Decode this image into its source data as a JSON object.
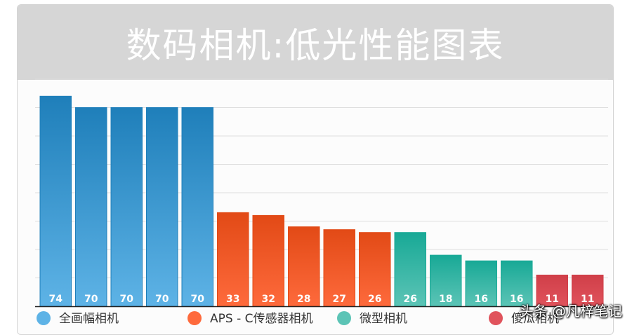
{
  "chart_data": {
    "type": "bar",
    "title": "数码相机:低光性能图表",
    "ylim": [
      0,
      80
    ],
    "grid": true,
    "legend_position": "bottom",
    "groups": [
      {
        "name": "全画幅相机",
        "color": "#5eb3e6",
        "color_dark": "#1f7fba"
      },
      {
        "name": "APS - C传感器相机",
        "color": "#fe6a3c",
        "color_dark": "#e24a16"
      },
      {
        "name": "微型相机",
        "color": "#5cc4b6",
        "color_dark": "#18a996"
      },
      {
        "name": "傻瓜相机",
        "color": "#e0535c",
        "color_dark": "#d03f49"
      }
    ],
    "bars": [
      {
        "value": 74,
        "group": 0
      },
      {
        "value": 70,
        "group": 0
      },
      {
        "value": 70,
        "group": 0
      },
      {
        "value": 70,
        "group": 0
      },
      {
        "value": 70,
        "group": 0
      },
      {
        "value": 33,
        "group": 1
      },
      {
        "value": 32,
        "group": 1
      },
      {
        "value": 28,
        "group": 1
      },
      {
        "value": 27,
        "group": 1
      },
      {
        "value": 26,
        "group": 1
      },
      {
        "value": 26,
        "group": 2
      },
      {
        "value": 18,
        "group": 2
      },
      {
        "value": 16,
        "group": 2
      },
      {
        "value": 16,
        "group": 2
      },
      {
        "value": 11,
        "group": 3
      },
      {
        "value": 11,
        "group": 3
      }
    ]
  },
  "watermark": "头条 @凡梓笔记"
}
